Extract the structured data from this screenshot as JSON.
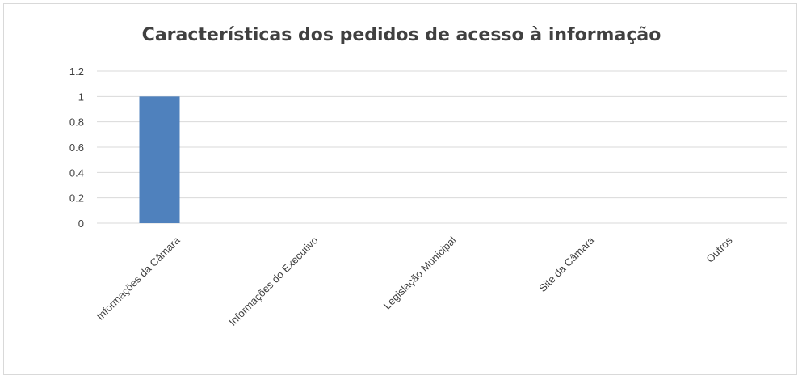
{
  "chart_data": {
    "type": "bar",
    "title": "Características dos pedidos de acesso à informação",
    "categories": [
      "Informações da Câmara",
      "Informações do Executivo",
      "Legislação Municipal",
      "Site da Câmara",
      "Outros"
    ],
    "values": [
      1,
      0,
      0,
      0,
      0
    ],
    "ylim": [
      0,
      1.2
    ],
    "yticks": [
      "0",
      "0.2",
      "0.4",
      "0.6",
      "0.8",
      "1",
      "1.2"
    ],
    "grid": true,
    "legend": "none",
    "colors": {
      "bar": "#4f81bd",
      "grid": "#d9d9d9",
      "text": "#404040"
    }
  }
}
